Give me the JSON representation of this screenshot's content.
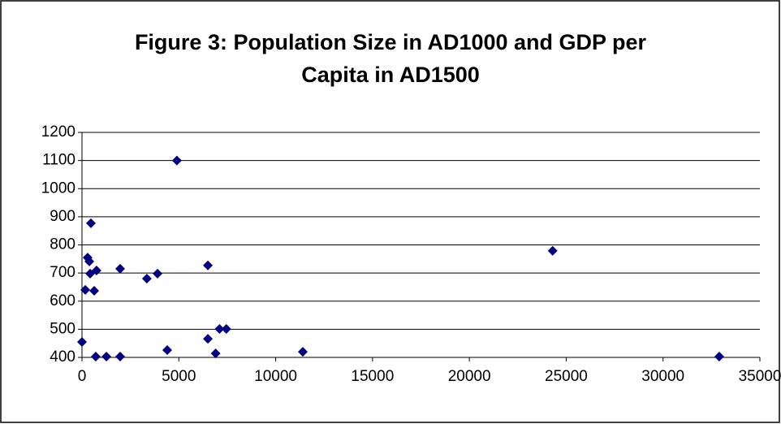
{
  "chart_data": {
    "type": "scatter",
    "title": "Figure 3: Population Size in AD1000 and GDP per Capita in AD1500",
    "color": "#000080",
    "x": [
      0,
      170,
      290,
      380,
      420,
      460,
      630,
      710,
      750,
      1260,
      1970,
      1970,
      3350,
      3900,
      4400,
      4900,
      6500,
      6500,
      6900,
      7100,
      7450,
      11400,
      24300,
      32900
    ],
    "values": [
      455,
      640,
      755,
      741,
      698,
      877,
      637,
      403,
      709,
      403,
      403,
      715,
      680,
      698,
      426,
      1100,
      727,
      466,
      414,
      501,
      501,
      420,
      779,
      403
    ],
    "xlim": [
      0,
      35000
    ],
    "xticks": [
      0,
      5000,
      10000,
      15000,
      20000,
      25000,
      30000,
      35000
    ],
    "ylim": [
      400,
      1200
    ],
    "yticks": [
      400,
      500,
      600,
      700,
      800,
      900,
      1000,
      1100,
      1200
    ],
    "grid": true
  }
}
